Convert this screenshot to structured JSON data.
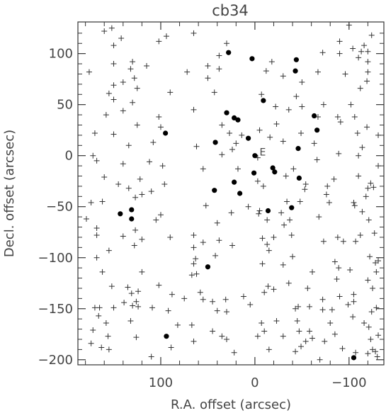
{
  "chart_data": {
    "type": "scatter",
    "title": "cb34",
    "xlabel": "R.A. offset (arcsec)",
    "ylabel": "Decl. offset (arcsec)",
    "x_reversed": true,
    "xlim": [
      188,
      -137
    ],
    "ylim": [
      -205,
      131
    ],
    "xticks": [
      100,
      0,
      -100
    ],
    "xtick_labels": [
      "100",
      "0",
      "−100"
    ],
    "yticks": [
      100,
      50,
      0,
      -50,
      -100,
      -150,
      -200
    ],
    "ytick_labels": [
      "100",
      "50",
      "0",
      "−50",
      "−100",
      "−150",
      "−200"
    ],
    "grid": false,
    "annotation": {
      "text": "E",
      "x": -5,
      "y": 3
    },
    "series": [
      {
        "marker": "filled-circle",
        "color": "#000000",
        "points": [
          [
            28,
            101
          ],
          [
            3,
            95
          ],
          [
            -44,
            94
          ],
          [
            -43,
            83
          ],
          [
            -9,
            54
          ],
          [
            -63,
            39
          ],
          [
            -66,
            25
          ],
          [
            30,
            42
          ],
          [
            22,
            37
          ],
          [
            18,
            35
          ],
          [
            95,
            22
          ],
          [
            7,
            17
          ],
          [
            -46,
            7
          ],
          [
            42,
            13
          ],
          [
            0,
            0
          ],
          [
            1,
            -17
          ],
          [
            -19,
            -12
          ],
          [
            -21,
            -16
          ],
          [
            22,
            -26
          ],
          [
            16,
            -37
          ],
          [
            -47,
            -22
          ],
          [
            43,
            -34
          ],
          [
            -39,
            -51
          ],
          [
            -14,
            -54
          ],
          [
            143,
            -57
          ],
          [
            131,
            -53
          ],
          [
            131,
            -62
          ],
          [
            50,
            -109
          ],
          [
            94,
            -177
          ],
          [
            -105,
            -198
          ]
        ]
      },
      {
        "marker": "plus",
        "color": "#333333",
        "points": [
          [
            152,
            125
          ],
          [
            160,
            122
          ],
          [
            65,
            120
          ],
          [
            -90,
            112
          ],
          [
            94,
            117
          ],
          [
            -100,
            128
          ],
          [
            -116,
            108
          ],
          [
            -124,
            118
          ],
          [
            -90,
            100
          ],
          [
            -110,
            96
          ],
          [
            -120,
            92
          ],
          [
            142,
            115
          ],
          [
            150,
            108
          ],
          [
            102,
            112
          ],
          [
            30,
            110
          ],
          [
            -18,
            92
          ],
          [
            -104,
            105
          ],
          [
            -113,
            102
          ],
          [
            -72,
            101
          ],
          [
            38,
            98
          ],
          [
            -120,
            102
          ],
          [
            130,
            92
          ],
          [
            150,
            90
          ],
          [
            115,
            88
          ],
          [
            176,
            82
          ],
          [
            72,
            82
          ],
          [
            -96,
            80
          ],
          [
            50,
            88
          ],
          [
            38,
            85
          ],
          [
            -12,
            83
          ],
          [
            -67,
            82
          ],
          [
            -30,
            78
          ],
          [
            132,
            85
          ],
          [
            128,
            76
          ],
          [
            140,
            72
          ],
          [
            125,
            66
          ],
          [
            150,
            69
          ],
          [
            155,
            61
          ],
          [
            90,
            62
          ],
          [
            50,
            76
          ],
          [
            -50,
            72
          ],
          [
            -119,
            73
          ],
          [
            -120,
            82
          ],
          [
            43,
            62
          ],
          [
            -7,
            60
          ],
          [
            -44,
            58
          ],
          [
            -112,
            66
          ],
          [
            140,
            44
          ],
          [
            150,
            55
          ],
          [
            -50,
            48
          ],
          [
            -73,
            50
          ],
          [
            -67,
            38
          ],
          [
            -88,
            38
          ],
          [
            -102,
            50
          ],
          [
            -106,
            38
          ],
          [
            102,
            38
          ],
          [
            65,
            45
          ],
          [
            -22,
            48
          ],
          [
            -36,
            45
          ],
          [
            125,
            30
          ],
          [
            130,
            52
          ],
          [
            158,
            40
          ],
          [
            170,
            22
          ],
          [
            100,
            28
          ],
          [
            35,
            30
          ],
          [
            27,
            22
          ],
          [
            14,
            20
          ],
          [
            -5,
            25
          ],
          [
            -16,
            18
          ],
          [
            -49,
            22
          ],
          [
            -109,
            22
          ],
          [
            -119,
            28
          ],
          [
            -131,
            20
          ],
          [
            -91,
            33
          ],
          [
            150,
            21
          ],
          [
            134,
            10
          ],
          [
            -23,
            31
          ],
          [
            -30,
            14
          ],
          [
            20,
            12
          ],
          [
            24,
            6
          ],
          [
            108,
            13
          ],
          [
            62,
            9
          ],
          [
            35,
            1
          ],
          [
            -63,
            12
          ],
          [
            -89,
            2
          ],
          [
            -114,
            8
          ],
          [
            172,
            0
          ],
          [
            168,
            -5
          ],
          [
            140,
            -8
          ],
          [
            112,
            -6
          ],
          [
            98,
            -10
          ],
          [
            -3,
            -2
          ],
          [
            -66,
            -4
          ],
          [
            -110,
            0
          ],
          [
            -131,
            -10
          ],
          [
            160,
            -21
          ],
          [
            122,
            -23
          ],
          [
            -41,
            -13
          ],
          [
            55,
            -13
          ],
          [
            18,
            -13
          ],
          [
            -54,
            -28
          ],
          [
            -84,
            -23
          ],
          [
            -110,
            -20
          ],
          [
            -123,
            -27
          ],
          [
            -126,
            -31
          ],
          [
            -138,
            -36
          ],
          [
            174,
            -46
          ],
          [
            145,
            -28
          ],
          [
            134,
            -32
          ],
          [
            127,
            -41
          ],
          [
            96,
            -28
          ],
          [
            -3,
            -25
          ],
          [
            -9,
            -30
          ],
          [
            -33,
            -20
          ],
          [
            -53,
            -33
          ],
          [
            -77,
            -30
          ],
          [
            -76,
            -38
          ],
          [
            -105,
            -46
          ],
          [
            -118,
            -40
          ],
          [
            162,
            -45
          ],
          [
            120,
            -38
          ],
          [
            110,
            -35
          ],
          [
            -5,
            -54
          ],
          [
            7,
            -50
          ],
          [
            -4,
            -57
          ],
          [
            -34,
            -45
          ],
          [
            -79,
            -46
          ],
          [
            -106,
            -49
          ],
          [
            -120,
            -32
          ],
          [
            179,
            -62
          ],
          [
            168,
            -71
          ],
          [
            127,
            -73
          ],
          [
            100,
            -58
          ],
          [
            105,
            -63
          ],
          [
            52,
            -49
          ],
          [
            -28,
            -56
          ],
          [
            -48,
            -45
          ],
          [
            -114,
            -55
          ],
          [
            -137,
            -64
          ],
          [
            -121,
            -63
          ],
          [
            140,
            -79
          ],
          [
            168,
            -78
          ],
          [
            120,
            -82
          ],
          [
            90,
            -80
          ],
          [
            65,
            -78
          ],
          [
            25,
            -56
          ],
          [
            -13,
            -63
          ],
          [
            -31,
            -68
          ],
          [
            -37,
            -63
          ],
          [
            -68,
            -60
          ],
          [
            -88,
            -80
          ],
          [
            -112,
            -78
          ],
          [
            128,
            -88
          ],
          [
            65,
            -90
          ],
          [
            55,
            -85
          ],
          [
            40,
            -66
          ],
          [
            24,
            -88
          ],
          [
            -8,
            -81
          ],
          [
            -20,
            -80
          ],
          [
            -39,
            -78
          ],
          [
            -73,
            -84
          ],
          [
            -107,
            -84
          ],
          [
            -127,
            -76
          ],
          [
            155,
            -93
          ],
          [
            168,
            -100
          ],
          [
            38,
            -83
          ],
          [
            -13,
            -87
          ],
          [
            -15,
            -93
          ],
          [
            -40,
            -99
          ],
          [
            -94,
            -84
          ],
          [
            -122,
            -99
          ],
          [
            -128,
            -105
          ],
          [
            -129,
            -114
          ],
          [
            -131,
            -103
          ],
          [
            63,
            -101
          ],
          [
            65,
            -106
          ],
          [
            42,
            -98
          ],
          [
            67,
            -117
          ],
          [
            -8,
            -106
          ],
          [
            -14,
            -128
          ],
          [
            -30,
            -107
          ],
          [
            -85,
            -104
          ],
          [
            -87,
            -121
          ],
          [
            162,
            -114
          ],
          [
            120,
            -114
          ],
          [
            102,
            -127
          ],
          [
            88,
            -136
          ],
          [
            62,
            -116
          ],
          [
            -61,
            -114
          ],
          [
            -89,
            -110
          ],
          [
            -101,
            -112
          ],
          [
            -120,
            -122
          ],
          [
            -125,
            -130
          ],
          [
            -56,
            -130
          ],
          [
            152,
            -128
          ],
          [
            135,
            -129
          ],
          [
            131,
            -135
          ],
          [
            124,
            -133
          ],
          [
            126,
            -143
          ],
          [
            139,
            -144
          ],
          [
            124,
            -148
          ],
          [
            109,
            -149
          ],
          [
            170,
            -149
          ],
          [
            165,
            -149
          ],
          [
            150,
            -149
          ],
          [
            130,
            -147
          ],
          [
            45,
            -143
          ],
          [
            58,
            -134
          ],
          [
            31,
            -141
          ],
          [
            -36,
            -125
          ],
          [
            -46,
            -148
          ],
          [
            -58,
            -148
          ],
          [
            -90,
            -138
          ],
          [
            -105,
            -136
          ],
          [
            -104,
            -158
          ],
          [
            -124,
            -153
          ],
          [
            -129,
            -149
          ],
          [
            -121,
            -168
          ],
          [
            -123,
            -180
          ],
          [
            -125,
            -190
          ],
          [
            -128,
            -192
          ],
          [
            -130,
            -197
          ],
          [
            166,
            -157
          ],
          [
            158,
            -164
          ],
          [
            132,
            -162
          ],
          [
            172,
            -171
          ],
          [
            156,
            -177
          ],
          [
            92,
            -152
          ],
          [
            75,
            -140
          ],
          [
            55,
            -141
          ],
          [
            12,
            -138
          ],
          [
            5,
            -146
          ],
          [
            -10,
            -134
          ],
          [
            -20,
            -131
          ],
          [
            -72,
            -141
          ],
          [
            -72,
            -151
          ],
          [
            -82,
            -151
          ],
          [
            -99,
            -146
          ],
          [
            -105,
            -143
          ],
          [
            -136,
            -138
          ],
          [
            163,
            -188
          ],
          [
            174,
            -184
          ],
          [
            126,
            -178
          ],
          [
            82,
            -166
          ],
          [
            67,
            -166
          ],
          [
            40,
            -152
          ],
          [
            30,
            -153
          ],
          [
            -7,
            -164
          ],
          [
            -23,
            -162
          ],
          [
            -43,
            -150
          ],
          [
            -58,
            -172
          ],
          [
            -80,
            -164
          ],
          [
            -85,
            -175
          ],
          [
            -116,
            -164
          ],
          [
            -131,
            -176
          ],
          [
            -136,
            -173
          ],
          [
            110,
            -197
          ],
          [
            155,
            -190
          ],
          [
            89,
            -188
          ],
          [
            65,
            -182
          ],
          [
            45,
            -172
          ],
          [
            35,
            -177
          ],
          [
            -3,
            -177
          ],
          [
            -10,
            -172
          ],
          [
            -30,
            -177
          ],
          [
            -45,
            -162
          ],
          [
            -47,
            -172
          ],
          [
            -54,
            -182
          ],
          [
            -61,
            -179
          ],
          [
            -74,
            -182
          ],
          [
            -93,
            -189
          ],
          [
            -107,
            -193
          ],
          [
            -120,
            -194
          ],
          [
            -15,
            -190
          ],
          [
            22,
            -193
          ],
          [
            -43,
            -192
          ],
          [
            -49,
            -187
          ],
          [
            -69,
            -200
          ],
          [
            30,
            -180
          ]
        ]
      }
    ]
  }
}
